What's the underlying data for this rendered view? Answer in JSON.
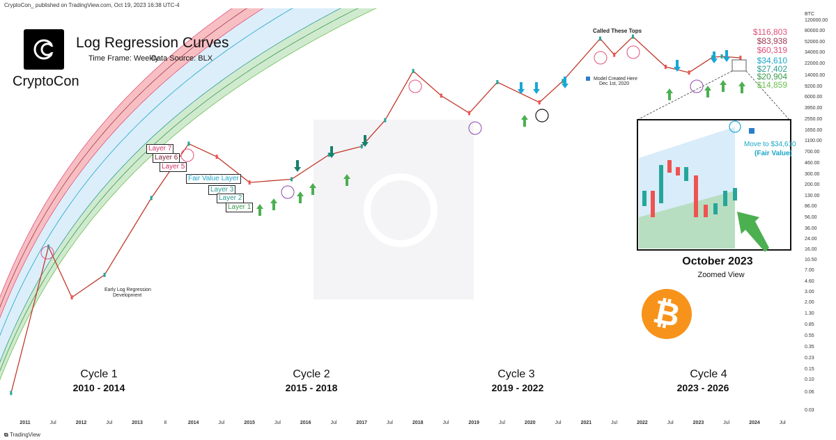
{
  "header": {
    "published": "CryptoCon_ published on TradingView.com, Oct 19, 2023 16:38 UTC-4"
  },
  "brand": {
    "name": "CryptoCon",
    "logo_letters": "CC"
  },
  "title": "Log Regression Curves",
  "subtitle": {
    "timeframe": "Time Frame: Weekly",
    "source": "Data Source: BLX"
  },
  "footer": {
    "platform": "TradingView"
  },
  "colors": {
    "upper_band": "#f28b92",
    "fair_band": "#bfe0f5",
    "lower_band": "#a9d9a9",
    "candle_up": "#26a69a",
    "candle_down": "#ef5350",
    "arrow_blue": "#17a7d6",
    "arrow_green": "#4caf50",
    "bitcoin": "#f7931a"
  },
  "chart_data": {
    "type": "line",
    "scale": "log",
    "yaxis_unit": "BTC",
    "yaxis_ticks": [
      "120000.00",
      "80000.00",
      "52000.00",
      "34000.00",
      "22000.00",
      "14000.00",
      "9200.00",
      "6000.00",
      "3950.00",
      "2550.00",
      "1650.00",
      "1100.00",
      "700.00",
      "460.00",
      "300.00",
      "200.00",
      "130.00",
      "86.00",
      "56.00",
      "36.00",
      "24.00",
      "16.00",
      "10.50",
      "7.00",
      "4.60",
      "3.00",
      "2.00",
      "1.30",
      "0.85",
      "0.55",
      "0.35",
      "0.23",
      "0.15",
      "0.10",
      "0.06",
      "0.03"
    ],
    "xaxis_ticks": [
      "2011",
      "Jul",
      "2012",
      "Jul",
      "2013",
      "8",
      "2014",
      "Jul",
      "2015",
      "Jul",
      "2016",
      "Jul",
      "2017",
      "Jul",
      "2018",
      "Jul",
      "2019",
      "Jul",
      "2020",
      "Jul",
      "2021",
      "Jul",
      "2022",
      "Jul",
      "2023",
      "Jul",
      "2024",
      "Jul"
    ],
    "price_levels": [
      {
        "label": "$116,803",
        "color": "#e0507a"
      },
      {
        "label": "$83,938",
        "color": "#a03850"
      },
      {
        "label": "$60,319",
        "color": "#e0507a"
      },
      {
        "label": "$34,610",
        "color": "#1aa6c8"
      },
      {
        "label": "$27,402",
        "color": "#2a9d8f"
      },
      {
        "label": "$20,904",
        "color": "#3a9a4a"
      },
      {
        "label": "$14,859",
        "color": "#6abf4b"
      }
    ],
    "layers": [
      "Layer 7",
      "Layer 6",
      "Layer 5",
      "Fair Value Layer",
      "Layer 3",
      "Layer 2",
      "Layer 1"
    ],
    "series": [
      {
        "x": [
          "2010-10",
          "2011-06",
          "2011-11",
          "2012-06",
          "2013-04",
          "2013-12",
          "2014-06",
          "2015-01",
          "2015-10",
          "2016-06",
          "2017-01",
          "2017-06",
          "2017-12",
          "2018-06",
          "2018-12",
          "2019-06",
          "2020-03",
          "2020-08",
          "2021-04",
          "2021-07",
          "2021-11",
          "2022-06",
          "2022-11",
          "2023-04",
          "2023-06",
          "2023-10"
        ],
        "y": [
          0.06,
          18,
          2.5,
          6,
          120,
          1000,
          600,
          220,
          250,
          650,
          900,
          2500,
          17000,
          6500,
          3300,
          11000,
          5000,
          11500,
          60000,
          32000,
          65000,
          20000,
          16000,
          29000,
          30000,
          28500
        ]
      }
    ]
  },
  "annotations": {
    "called_tops": "Called These Tops",
    "model_created": "Model Created Here",
    "model_date": "Dec 1st, 2020",
    "early_dev_1": "Early Log Regression",
    "early_dev_2": "Development",
    "zoom_move": "Move to $34,610",
    "zoom_fair": "(Fair Value)",
    "zoom_title": "October 2023",
    "zoom_sub": "Zoomed View"
  },
  "cycles": [
    {
      "name": "Cycle 1",
      "years": "2010 - 2014"
    },
    {
      "name": "Cycle 2",
      "years": "2015 - 2018"
    },
    {
      "name": "Cycle 3",
      "years": "2019 - 2022"
    },
    {
      "name": "Cycle 4",
      "years": "2023 - 2026"
    }
  ],
  "bitcoin_icon": "bitcoin-icon"
}
